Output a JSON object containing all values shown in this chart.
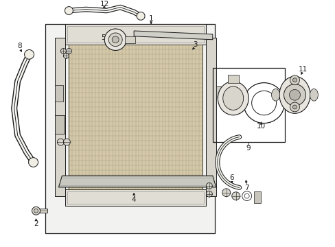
{
  "bg_color": "#ffffff",
  "line_color": "#1a1a1a",
  "grid_fill": "#d4c8a8",
  "label_font_size": 7.5,
  "fig_width": 4.89,
  "fig_height": 3.6
}
